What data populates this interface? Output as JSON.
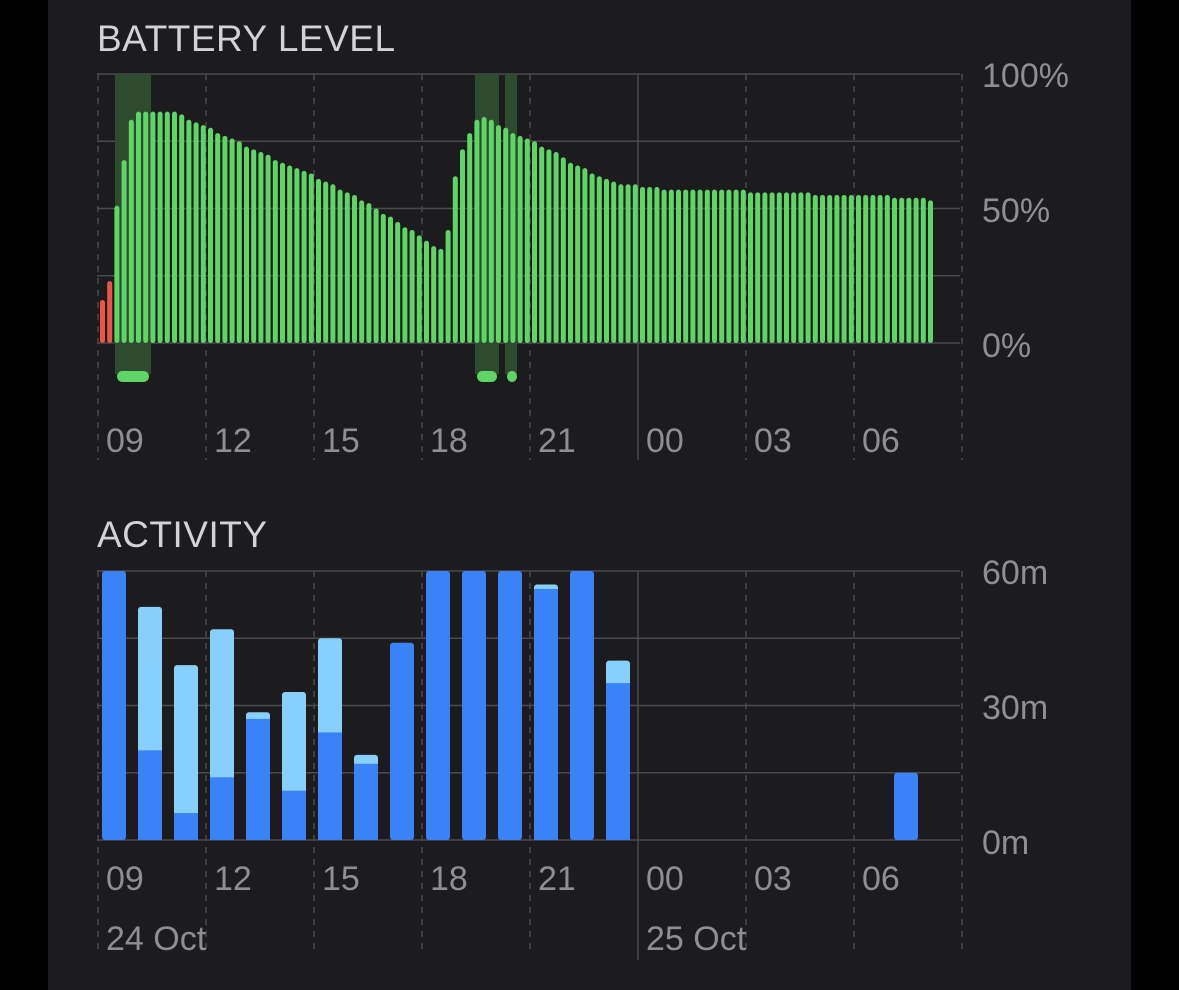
{
  "battery": {
    "title": "BATTERY LEVEL",
    "y_tick_labels": [
      "100%",
      "50%",
      "0%"
    ]
  },
  "activity": {
    "title": "ACTIVITY",
    "y_tick_labels": [
      "60m",
      "30m",
      "0m"
    ]
  },
  "x_tick_labels": [
    "09",
    "12",
    "15",
    "18",
    "21",
    "00",
    "03",
    "06"
  ],
  "date_labels": [
    "24 Oct",
    "25 Oct"
  ],
  "colors": {
    "background": "#1c1c1e",
    "battery_normal": "#5fd567",
    "battery_low": "#eb5545",
    "charging_band": "#2e4a2f",
    "screen_on_activity": "#3a82f7",
    "screen_off_activity": "#87d0fc",
    "grid": "#4a4a4d",
    "label": "#8e8e93"
  },
  "chart_data": [
    {
      "type": "bar",
      "title": "BATTERY LEVEL",
      "x_unit": "hour of day (24 Oct 08:00 to 25 Oct 10:00)",
      "y_unit": "percent",
      "ylim": [
        0,
        100
      ],
      "y_ticks": [
        0,
        50,
        100
      ],
      "x_ticks": [
        "09",
        "12",
        "15",
        "18",
        "21",
        "00",
        "03",
        "06"
      ],
      "grid": true,
      "values": [
        16,
        23,
        51,
        68,
        83,
        86,
        86,
        86,
        86,
        86,
        86,
        85,
        83,
        82,
        81,
        80,
        78,
        77,
        76,
        75,
        73,
        72,
        71,
        70,
        68,
        67,
        66,
        65,
        64,
        63,
        61,
        60,
        59,
        57,
        56,
        55,
        53,
        52,
        50,
        48,
        47,
        45,
        43,
        42,
        40,
        38,
        36,
        35,
        42,
        62,
        72,
        78,
        83,
        84,
        83,
        81,
        80,
        78,
        77,
        76,
        75,
        73,
        72,
        71,
        69,
        67,
        66,
        65,
        63,
        62,
        61,
        60,
        59,
        59,
        59,
        58,
        58,
        58,
        57,
        57,
        57,
        57,
        57,
        57,
        57,
        57,
        57,
        57,
        57,
        57,
        56,
        56,
        56,
        56,
        56,
        56,
        56,
        56,
        56,
        55,
        55,
        55,
        55,
        55,
        55,
        55,
        55,
        55,
        55,
        55,
        54,
        54,
        54,
        54,
        54,
        53
      ],
      "low_battery_bar_indices": [
        0,
        1
      ],
      "charging_periods": [
        [
          "08:20",
          "09:20"
        ],
        [
          "18:20",
          "19:00"
        ],
        [
          "19:10",
          "19:30"
        ]
      ]
    },
    {
      "type": "bar",
      "title": "ACTIVITY",
      "y_unit": "minutes",
      "ylim": [
        0,
        60
      ],
      "y_ticks": [
        0,
        30,
        60
      ],
      "categories": [
        "08",
        "09",
        "10",
        "11",
        "12",
        "13",
        "14",
        "15",
        "16",
        "17",
        "18",
        "19",
        "20",
        "21",
        "22",
        "23",
        "00",
        "01",
        "02",
        "03",
        "04",
        "05",
        "06",
        "07"
      ],
      "series": [
        {
          "values": [
            60,
            20,
            6,
            14,
            27,
            11,
            24,
            17,
            44,
            60,
            60,
            60,
            56,
            60,
            35,
            0,
            0,
            0,
            0,
            0,
            0,
            0,
            15,
            0
          ]
        },
        {
          "values": [
            0,
            32,
            33,
            33,
            1.5,
            22,
            21,
            2,
            0,
            0,
            0,
            0,
            1,
            0,
            5,
            0,
            0,
            0,
            0,
            0,
            0,
            0,
            0,
            0
          ]
        }
      ],
      "grid": true
    }
  ]
}
